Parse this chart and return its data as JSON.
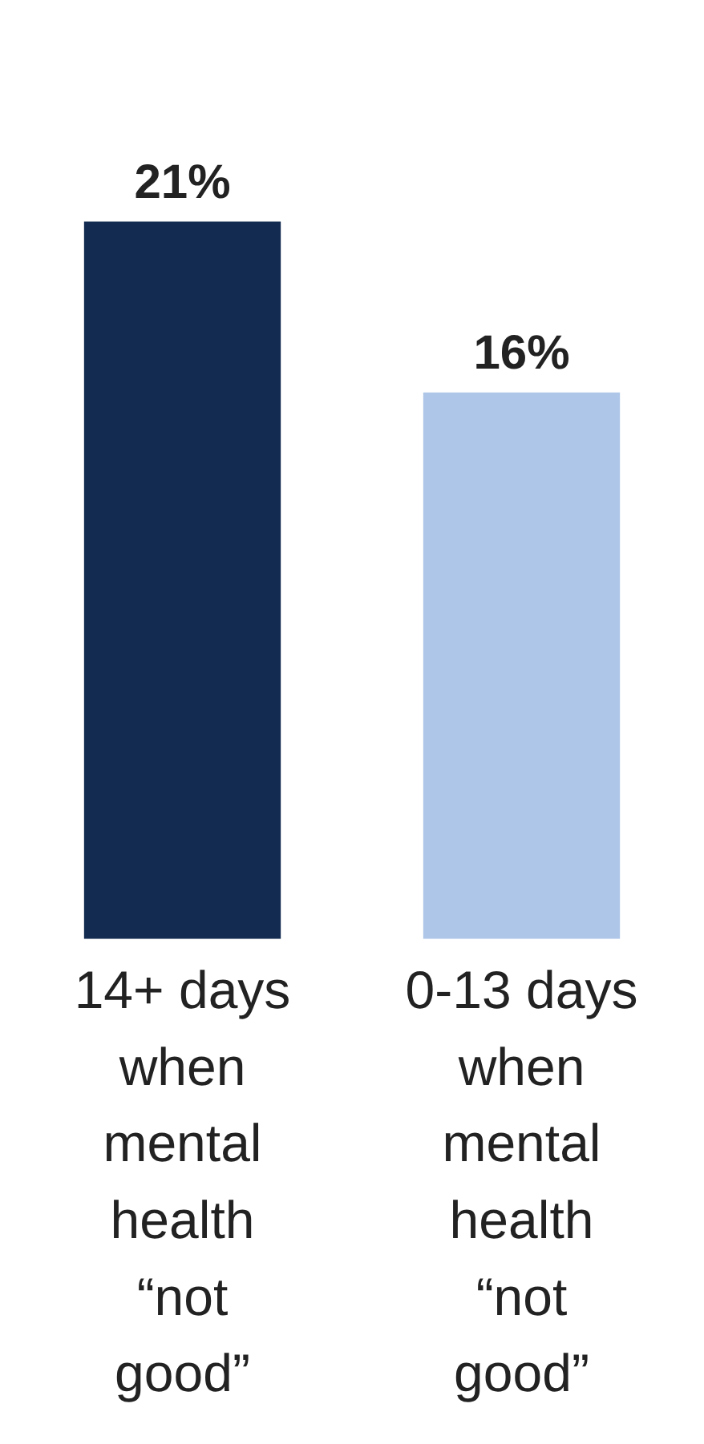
{
  "chart_data": {
    "type": "bar",
    "categories": [
      "14+ days when mental health “not good”",
      "0-13 days when mental health “not good”"
    ],
    "values": [
      21,
      16
    ],
    "colors": [
      "#132b50",
      "#aec6e8"
    ],
    "value_labels": [
      "21%",
      "16%"
    ],
    "grid": false,
    "legend": false
  }
}
